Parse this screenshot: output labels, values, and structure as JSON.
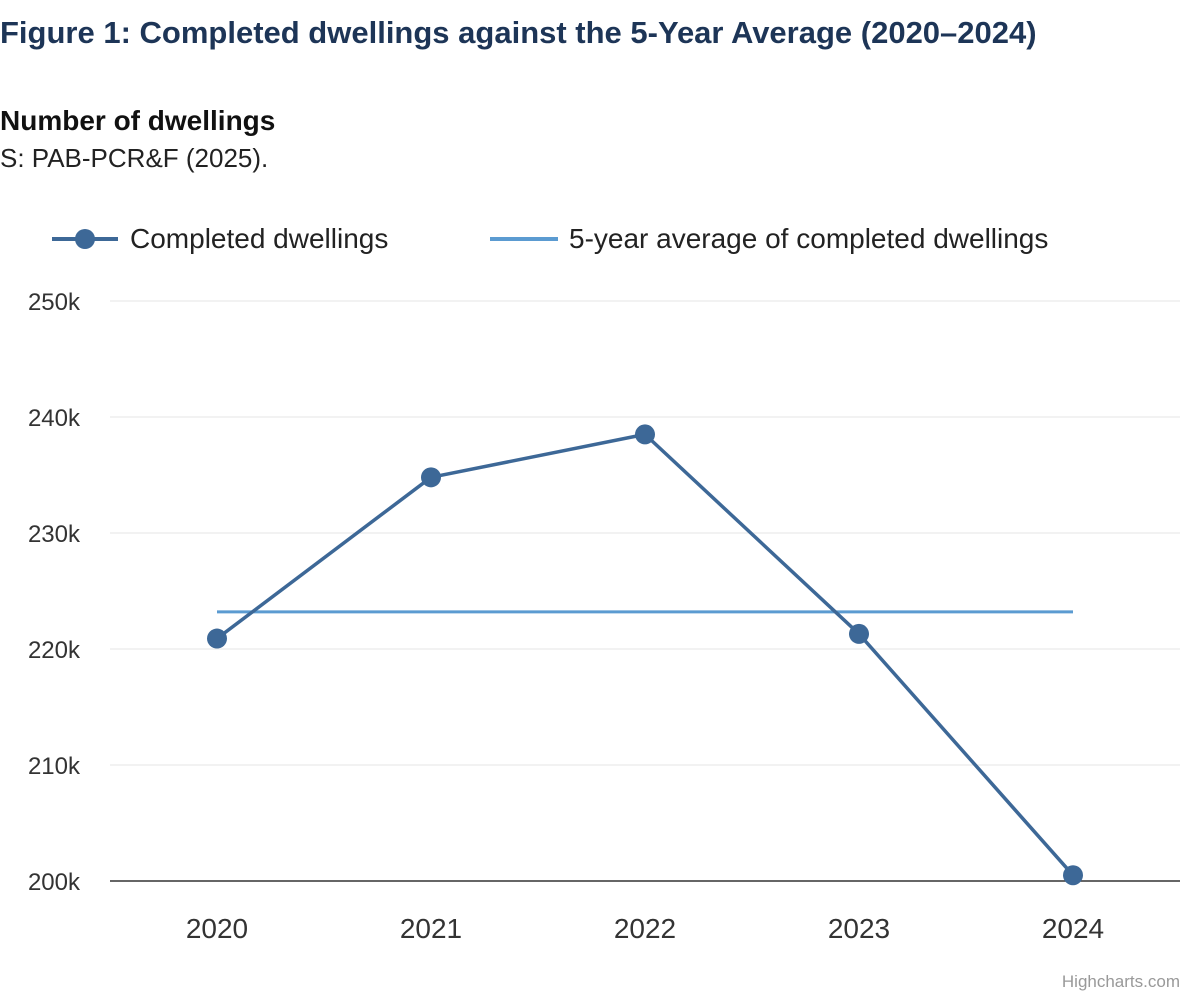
{
  "title": "Figure 1: Completed dwellings against the 5-Year Average (2020–2024)",
  "subtitle": "Number of dwellings",
  "source": "S: PAB-PCR&F (2025).",
  "credit": "Highcharts.com",
  "colors": {
    "completed": "#3d6897",
    "average": "#5b9bd1",
    "gridline": "#e6e6e6",
    "axis": "#333333",
    "title": "#1d3557"
  },
  "chart_data": {
    "type": "line",
    "title": "Figure 1: Completed dwellings against the 5-Year Average (2020–2024)",
    "ylabel": "Number of dwellings",
    "xlabel": "",
    "categories": [
      "2020",
      "2021",
      "2022",
      "2023",
      "2024"
    ],
    "ylim": [
      200000,
      250000
    ],
    "yticks": [
      200000,
      210000,
      220000,
      230000,
      240000,
      250000
    ],
    "ytick_labels": [
      "200k",
      "210k",
      "220k",
      "230k",
      "240k",
      "250k"
    ],
    "grid": true,
    "legend_position": "top",
    "series": [
      {
        "name": "Completed dwellings",
        "marker": "circle",
        "values": [
          220900,
          234800,
          238500,
          221300,
          200500
        ]
      },
      {
        "name": "5-year average of completed dwellings",
        "marker": "none",
        "values": [
          223200,
          223200,
          223200,
          223200,
          223200
        ]
      }
    ]
  }
}
